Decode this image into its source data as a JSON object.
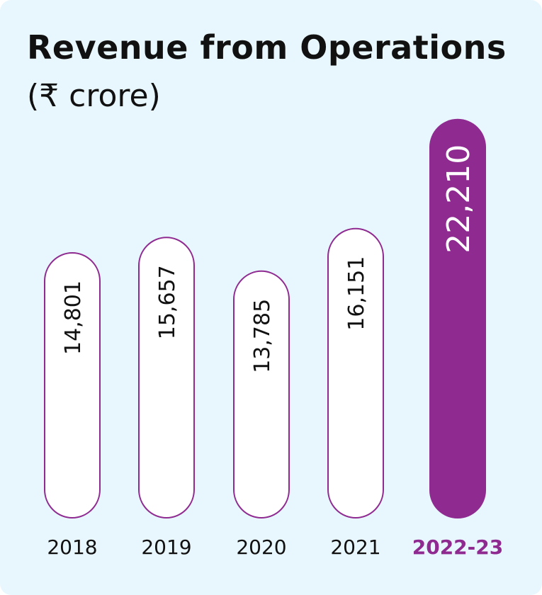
{
  "chart_data": {
    "type": "bar",
    "title": "Revenue from Operations",
    "subtitle": "(₹ crore)",
    "categories": [
      "2018",
      "2019",
      "2020",
      "2021",
      "2022-23"
    ],
    "values": [
      14801,
      15657,
      13785,
      16151,
      22210
    ],
    "value_labels": [
      "14,801",
      "15,657",
      "13,785",
      "16,151",
      "22,210"
    ],
    "highlight_index": 4,
    "colors": {
      "background": "#e8f6fd",
      "bar_fill": "#ffffff",
      "bar_outline": "#8e2a90",
      "highlight_fill": "#8e2a90",
      "highlight_text": "#ffffff",
      "text": "#111111",
      "highlight_label": "#8e2a90"
    },
    "grid": false,
    "legend": "none"
  }
}
